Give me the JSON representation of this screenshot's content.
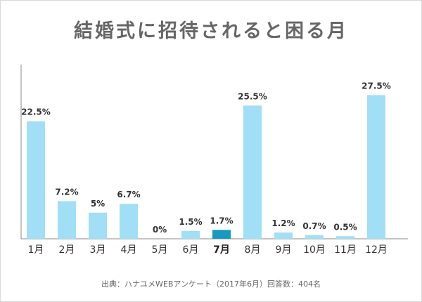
{
  "title": "結婚式に招待されると困る月",
  "source": "出典：ハナユメWEBアンケート（2017年6月）回答数：404名",
  "colors": {
    "bar": "#a0dff5",
    "highlight": "#1799c0",
    "axis": "#888888",
    "label": "#333333"
  },
  "chart_data": {
    "type": "bar",
    "categories": [
      "1月",
      "2月",
      "3月",
      "4月",
      "5月",
      "6月",
      "7月",
      "8月",
      "9月",
      "10月",
      "11月",
      "12月"
    ],
    "values": [
      22.5,
      7.2,
      5,
      6.7,
      0,
      1.5,
      1.7,
      25.5,
      1.2,
      0.7,
      0.5,
      27.5
    ],
    "value_labels": [
      "22.5%",
      "7.2%",
      "5%",
      "6.7%",
      "0%",
      "1.5%",
      "1.7%",
      "25.5%",
      "1.2%",
      "0.7%",
      "0.5%",
      "27.5%"
    ],
    "highlight": "7月",
    "ylim": [
      0,
      28.5
    ],
    "grid": false,
    "title": "結婚式に招待されると困る月",
    "xlabel": "",
    "ylabel": ""
  }
}
